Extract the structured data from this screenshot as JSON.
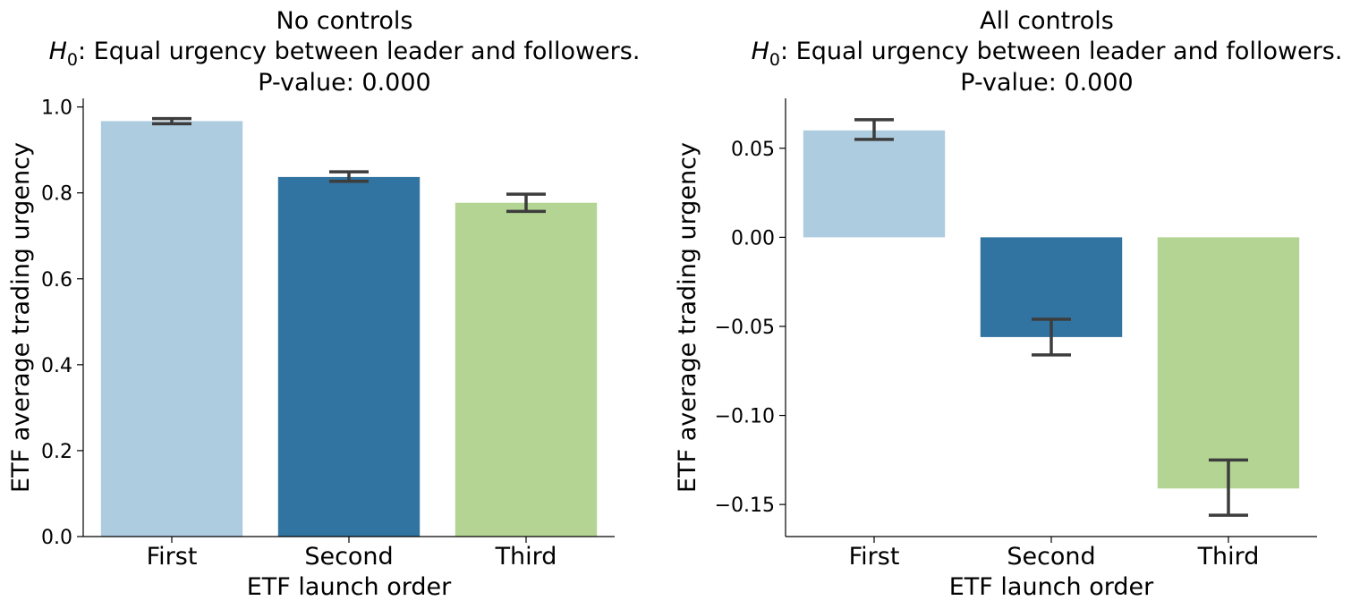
{
  "chart_data": [
    {
      "type": "bar",
      "title_lines": [
        "No controls",
        "H0: Equal urgency between leader and followers.",
        "P-value: 0.000"
      ],
      "xlabel": "ETF launch order",
      "ylabel": "ETF average trading urgency",
      "categories": [
        "First",
        "Second",
        "Third"
      ],
      "values": [
        0.967,
        0.837,
        0.777
      ],
      "error_low": [
        0.961,
        0.827,
        0.757
      ],
      "error_high": [
        0.973,
        0.849,
        0.797
      ],
      "colors": [
        "#aecce0",
        "#3274a1",
        "#b4d494"
      ],
      "ylim": [
        0,
        1.02
      ],
      "yticks": [
        0.0,
        0.2,
        0.4,
        0.6,
        0.8,
        1.0
      ],
      "ytick_labels": [
        "0.0",
        "0.2",
        "0.4",
        "0.6",
        "0.8",
        "1.0"
      ],
      "grid": false
    },
    {
      "type": "bar",
      "title_lines": [
        "All controls",
        "H0: Equal urgency between leader and followers.",
        "P-value: 0.000"
      ],
      "xlabel": "ETF launch order",
      "ylabel": "ETF average trading urgency",
      "categories": [
        "First",
        "Second",
        "Third"
      ],
      "values": [
        0.06,
        -0.056,
        -0.141
      ],
      "error_low": [
        0.055,
        -0.066,
        -0.156
      ],
      "error_high": [
        0.066,
        -0.046,
        -0.125
      ],
      "colors": [
        "#aecce0",
        "#3274a1",
        "#b4d494"
      ],
      "ylim": [
        -0.168,
        0.078
      ],
      "yticks": [
        -0.15,
        -0.1,
        -0.05,
        0.0,
        0.05
      ],
      "ytick_labels": [
        "−0.15",
        "−0.10",
        "−0.05",
        "0.00",
        "0.05"
      ],
      "grid": false
    }
  ]
}
